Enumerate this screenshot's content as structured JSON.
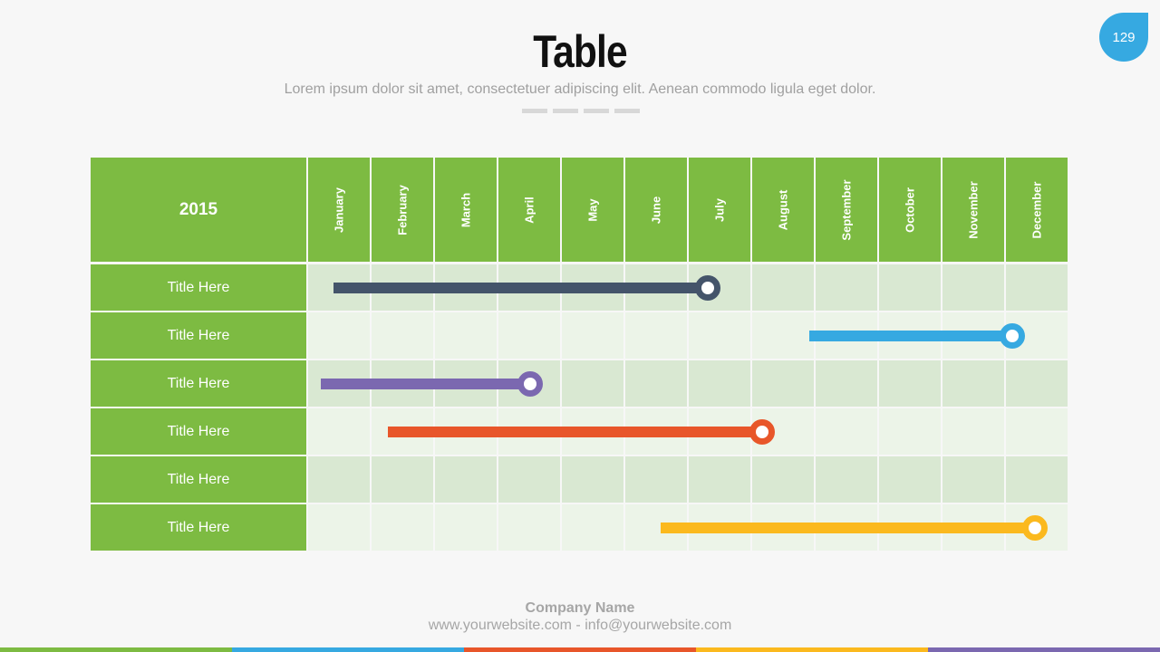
{
  "slide": {
    "title": "Table",
    "subtitle": "Lorem ipsum dolor sit amet, consectetuer adipiscing elit. Aenean commodo ligula eget dolor.",
    "page_number": "129"
  },
  "table": {
    "year": "2015",
    "months": [
      "January",
      "February",
      "March",
      "April",
      "May",
      "June",
      "July",
      "August",
      "September",
      "October",
      "November",
      "December"
    ],
    "rows": [
      {
        "label": "Title Here",
        "start": 0.4,
        "end": 6.3,
        "color": "#44546a"
      },
      {
        "label": "Title Here",
        "start": 7.9,
        "end": 11.1,
        "color": "#36a9e1"
      },
      {
        "label": "Title Here",
        "start": 0.2,
        "end": 3.5,
        "color": "#7b68b0"
      },
      {
        "label": "Title Here",
        "start": 1.25,
        "end": 7.15,
        "color": "#e8562a"
      },
      {
        "label": "Title Here",
        "start": null,
        "end": null,
        "color": null
      },
      {
        "label": "Title Here",
        "start": 5.55,
        "end": 11.45,
        "color": "#fbb91e"
      }
    ]
  },
  "footer": {
    "company": "Company Name",
    "contact": "www.yourwebsite.com - info@yourwebsite.com",
    "strip_colors": [
      "#7dbb42",
      "#36a9e1",
      "#e8562a",
      "#fbb91e",
      "#7b68b0"
    ]
  },
  "colors": {
    "header_green": "#7dbb42",
    "row_dark": "#d9e8d2",
    "row_light": "#ecf4e8"
  }
}
